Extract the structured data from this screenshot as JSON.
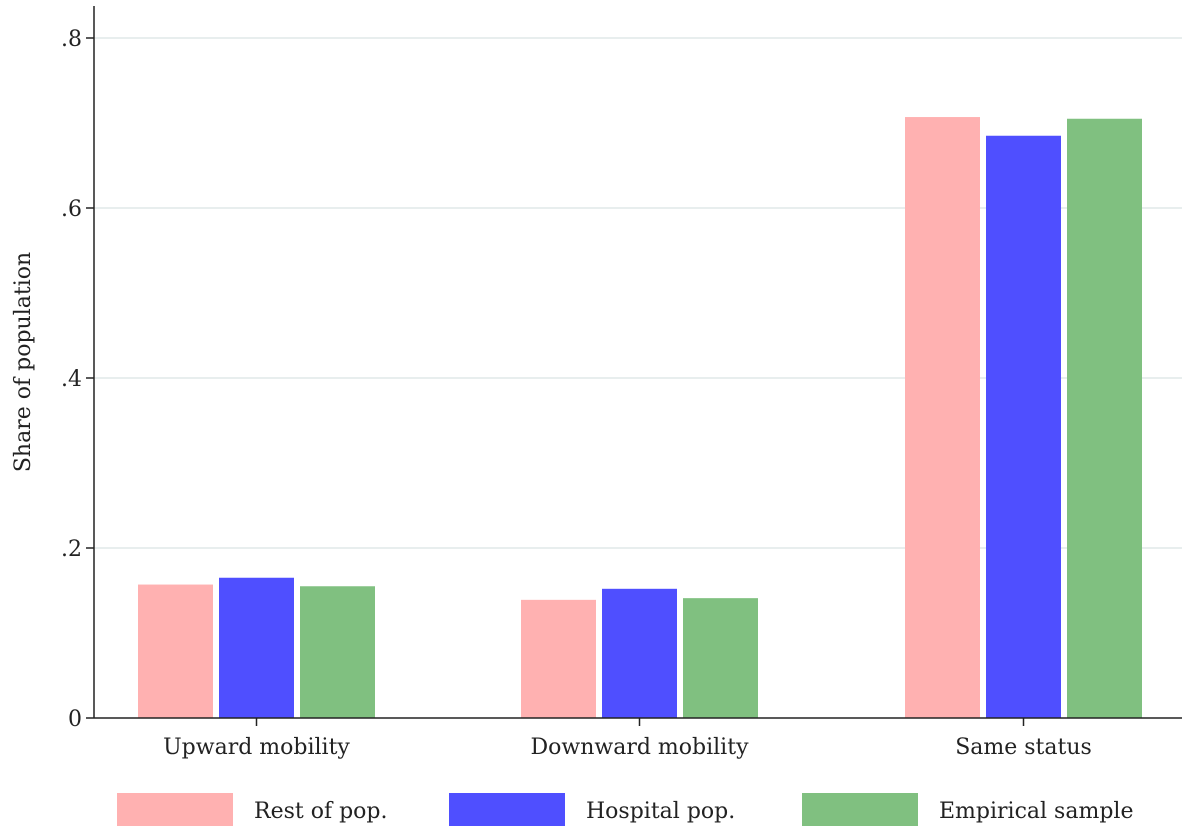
{
  "chart_data": {
    "type": "bar",
    "title": "",
    "xlabel": "",
    "ylabel": "Share of population",
    "ylim": [
      0,
      0.8
    ],
    "yticks": [
      0,
      0.2,
      0.4,
      0.6,
      0.8
    ],
    "ytick_labels": [
      "0",
      ".2",
      ".4",
      ".6",
      ".8"
    ],
    "grid": true,
    "legend_position": "bottom",
    "categories": [
      "Upward mobility",
      "Downward mobility",
      "Same status"
    ],
    "series": [
      {
        "name": "Rest of pop.",
        "color": "#ffb1b1",
        "values": [
          0.157,
          0.139,
          0.707
        ]
      },
      {
        "name": "Hospital pop.",
        "color": "#4f4fff",
        "values": [
          0.165,
          0.152,
          0.685
        ]
      },
      {
        "name": "Empirical sample",
        "color": "#80c080",
        "values": [
          0.155,
          0.141,
          0.705
        ]
      }
    ]
  }
}
